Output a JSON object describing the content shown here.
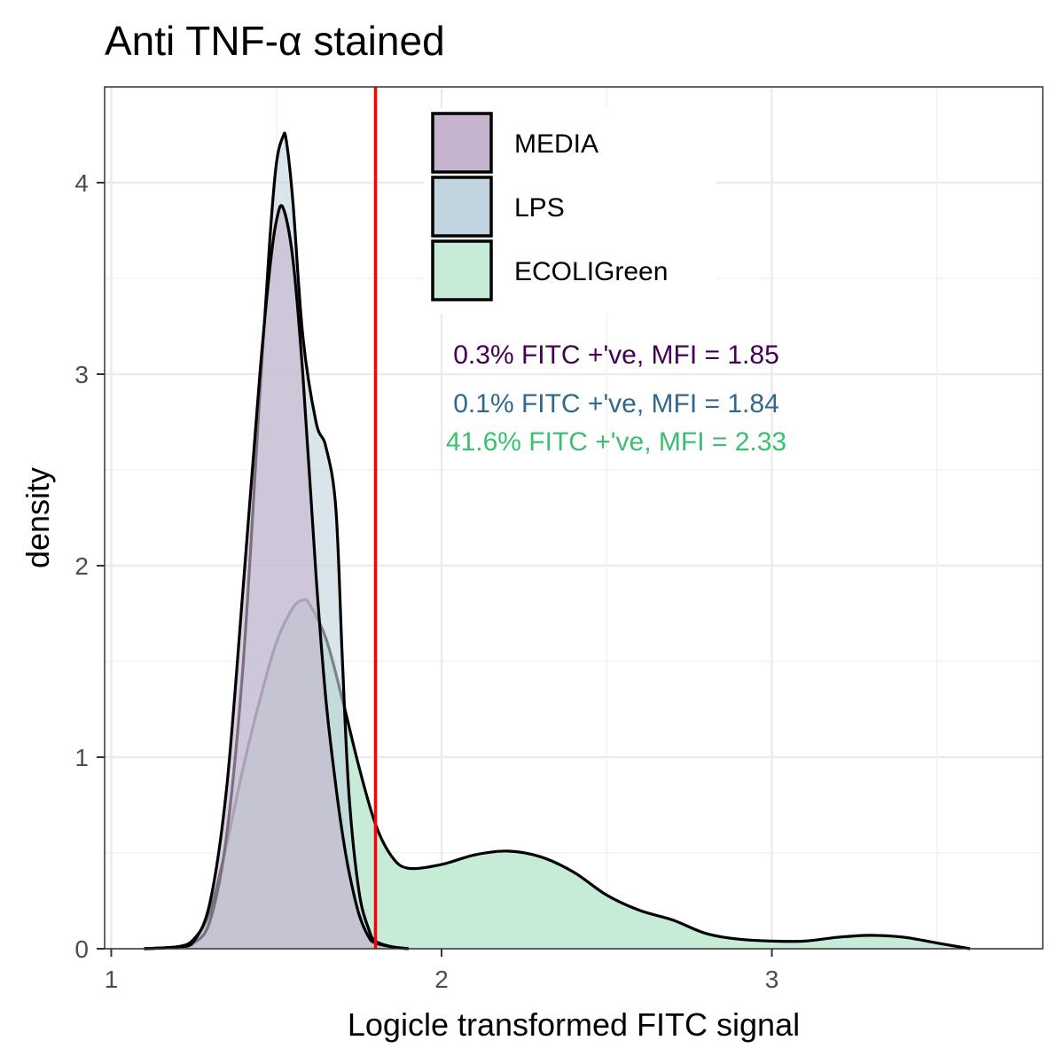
{
  "chart_data": {
    "type": "area",
    "title": "Anti TNF-α stained",
    "xlabel": "Logicle transformed FITC signal",
    "ylabel": "density",
    "xlim": [
      0.98,
      3.82
    ],
    "ylim": [
      0,
      4.5
    ],
    "x_ticks": [
      1,
      2,
      3
    ],
    "y_ticks": [
      0,
      1,
      2,
      3,
      4
    ],
    "grid": true,
    "legend_position": "top-center",
    "threshold_line": {
      "x": 1.8,
      "color": "#ff0000"
    },
    "series": [
      {
        "name": "MEDIA",
        "fill": "#c6b4cf",
        "text_color": "#440154",
        "x": [
          1.1,
          1.2,
          1.25,
          1.3,
          1.35,
          1.4,
          1.45,
          1.48,
          1.5,
          1.52,
          1.55,
          1.58,
          1.62,
          1.65,
          1.68,
          1.7,
          1.72,
          1.75,
          1.78,
          1.8,
          1.85,
          1.9
        ],
        "y": [
          0.0,
          0.01,
          0.04,
          0.25,
          0.85,
          1.9,
          3.0,
          3.55,
          3.8,
          3.87,
          3.6,
          3.0,
          1.95,
          1.3,
          0.85,
          0.6,
          0.4,
          0.18,
          0.06,
          0.03,
          0.01,
          0.0
        ]
      },
      {
        "name": "LPS",
        "fill": "#c1d4df",
        "text_color": "#31688e",
        "x": [
          1.1,
          1.2,
          1.25,
          1.3,
          1.35,
          1.4,
          1.45,
          1.48,
          1.5,
          1.52,
          1.53,
          1.55,
          1.58,
          1.62,
          1.65,
          1.68,
          1.7,
          1.72,
          1.75,
          1.78,
          1.8,
          1.85,
          1.9
        ],
        "y": [
          0.0,
          0.01,
          0.03,
          0.15,
          0.6,
          1.5,
          2.9,
          3.7,
          4.1,
          4.24,
          4.22,
          3.9,
          3.2,
          2.75,
          2.62,
          2.3,
          1.5,
          0.8,
          0.3,
          0.1,
          0.04,
          0.01,
          0.0
        ]
      },
      {
        "name": "ECOLIGreen",
        "fill": "#c6ebd6",
        "text_color": "#3bbf72",
        "x": [
          1.1,
          1.2,
          1.25,
          1.3,
          1.35,
          1.4,
          1.45,
          1.5,
          1.55,
          1.58,
          1.6,
          1.65,
          1.7,
          1.75,
          1.8,
          1.85,
          1.9,
          2.0,
          2.1,
          2.2,
          2.3,
          2.4,
          2.5,
          2.6,
          2.7,
          2.8,
          2.9,
          3.0,
          3.1,
          3.2,
          3.3,
          3.4,
          3.5,
          3.6
        ],
        "y": [
          0.0,
          0.01,
          0.05,
          0.2,
          0.55,
          0.95,
          1.3,
          1.6,
          1.78,
          1.82,
          1.8,
          1.62,
          1.3,
          0.95,
          0.65,
          0.48,
          0.42,
          0.44,
          0.49,
          0.51,
          0.48,
          0.4,
          0.28,
          0.2,
          0.15,
          0.08,
          0.05,
          0.04,
          0.04,
          0.06,
          0.07,
          0.06,
          0.03,
          0.0
        ]
      }
    ],
    "annotations": [
      {
        "text": "0.3% FITC +'ve, MFI = 1.85",
        "color": "#440154"
      },
      {
        "text": "0.1% FITC +'ve, MFI = 1.84",
        "color": "#31688e"
      },
      {
        "text": "41.6% FITC +'ve, MFI = 2.33",
        "color": "#3bbf72"
      }
    ]
  }
}
